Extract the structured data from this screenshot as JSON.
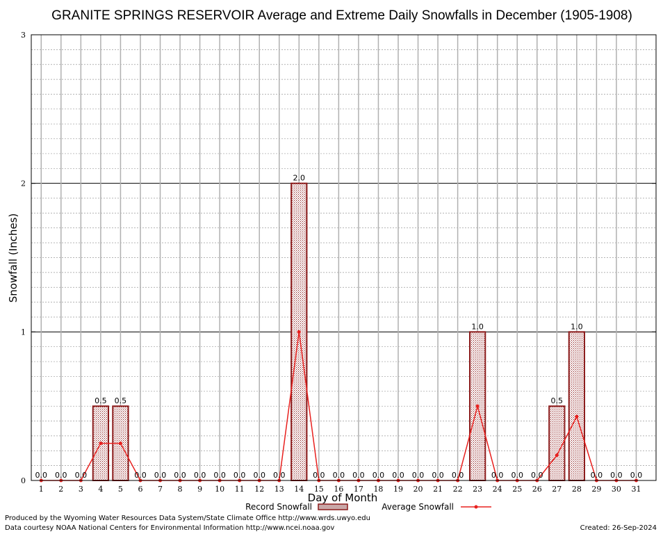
{
  "chart_data": {
    "type": "bar",
    "title": "GRANITE SPRINGS RESERVOIR Average and Extreme Daily Snowfalls in December (1905-1908)",
    "xlabel": "Day of Month",
    "ylabel": "Snowfall (Inches)",
    "ylim": [
      0,
      3
    ],
    "yticks": [
      "0",
      "1",
      "2",
      "3"
    ],
    "categories": [
      "1",
      "2",
      "3",
      "4",
      "5",
      "6",
      "7",
      "8",
      "9",
      "10",
      "11",
      "12",
      "13",
      "14",
      "15",
      "16",
      "17",
      "18",
      "19",
      "20",
      "21",
      "22",
      "23",
      "24",
      "25",
      "26",
      "27",
      "28",
      "29",
      "30",
      "31"
    ],
    "series": [
      {
        "name": "Record Snowfall",
        "type": "bar",
        "color": "#8b1a1a",
        "values": [
          0,
          0,
          0,
          0.5,
          0.5,
          0,
          0,
          0,
          0,
          0,
          0,
          0,
          0,
          2.0,
          0,
          0,
          0,
          0,
          0,
          0,
          0,
          0,
          1.0,
          0,
          0,
          0,
          0.5,
          1.0,
          0,
          0,
          0
        ],
        "labels": [
          "0.0",
          "0.0",
          "0.0",
          "0.5",
          "0.5",
          "0.0",
          "0.0",
          "0.0",
          "0.0",
          "0.0",
          "0.0",
          "0.0",
          "0.0",
          "2.0",
          "0.0",
          "0.0",
          "0.0",
          "0.0",
          "0.0",
          "0.0",
          "0.0",
          "0.0",
          "1.0",
          "0.0",
          "0.0",
          "0.0",
          "0.5",
          "1.0",
          "0.0",
          "0.0",
          "0.0"
        ]
      },
      {
        "name": "Average Snowfall",
        "type": "line",
        "color": "#e8201e",
        "values": [
          0,
          0,
          0,
          0.25,
          0.25,
          0,
          0,
          0,
          0,
          0,
          0,
          0,
          0,
          1.0,
          0,
          0,
          0,
          0,
          0,
          0,
          0,
          0,
          0.5,
          0,
          0,
          0,
          0.17,
          0.43,
          0,
          0,
          0
        ]
      }
    ],
    "grid": true,
    "legend_position": "bottom-center"
  },
  "footer": {
    "line1": "Produced by the Wyoming Water Resources Data System/State Climate Office http://www.wrds.uwyo.edu",
    "line2": "Data courtesy NOAA National Centers for Environmental Information http://www.ncei.noaa.gov",
    "created": "Created: 26-Sep-2024"
  }
}
